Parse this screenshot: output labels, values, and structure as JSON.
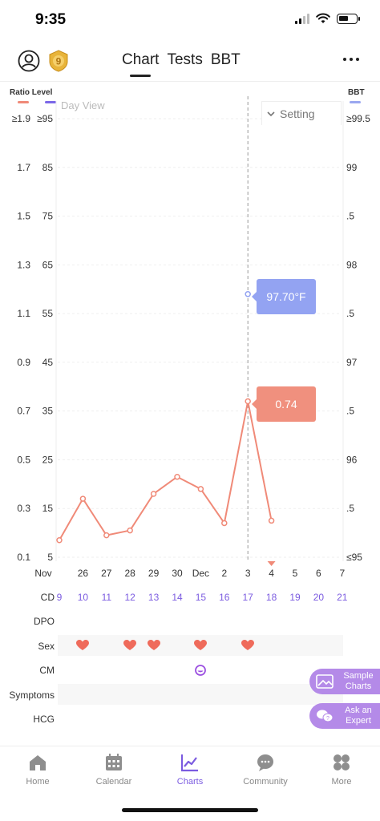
{
  "status": {
    "time": "9:35"
  },
  "header": {
    "tabs": [
      {
        "label": "Chart",
        "active": true
      },
      {
        "label": "Tests",
        "active": false
      },
      {
        "label": "BBT",
        "active": false
      }
    ],
    "badge_label": "9"
  },
  "legend": {
    "ratio": "Ratio",
    "level": "Level",
    "bbt": "BBT"
  },
  "day_view": "Day View",
  "setting_label": "Setting",
  "colors": {
    "ratio": "#f08a78",
    "bbt": "#93a3f2",
    "accent": "#7b5be0"
  },
  "chart_data": {
    "type": "line",
    "left_axis_ratio_ticks": [
      "≥1.9",
      "1.7",
      "1.5",
      "1.3",
      "1.1",
      "0.9",
      "0.7",
      "0.5",
      "0.3",
      "0.1"
    ],
    "left_axis_level_ticks": [
      "≥95",
      "85",
      "75",
      "65",
      "55",
      "45",
      "35",
      "25",
      "15",
      "5"
    ],
    "right_axis_bbt_ticks": [
      "≥99.5",
      "99",
      ".5",
      "98",
      ".5",
      "97",
      ".5",
      "96",
      ".5",
      "≤95"
    ],
    "ratio_ylim": [
      0.1,
      1.9
    ],
    "bbt_ylim": [
      95,
      99.5
    ],
    "x_labels": [
      "Nov",
      "26",
      "27",
      "28",
      "29",
      "30",
      "Dec",
      "2",
      "3",
      "4",
      "5",
      "6",
      "7"
    ],
    "series": [
      {
        "name": "Ratio",
        "x_index": [
          0,
          1,
          2,
          3,
          4,
          5,
          6,
          7,
          8,
          9
        ],
        "values": [
          0.17,
          0.34,
          0.19,
          0.21,
          0.36,
          0.43,
          0.38,
          0.24,
          0.74,
          0.25
        ]
      },
      {
        "name": "BBT",
        "x_index": [
          8
        ],
        "values": [
          97.7
        ]
      }
    ],
    "selected_index": 8,
    "selected_ratio_label": "0.74",
    "selected_bbt_label": "97.70°F"
  },
  "rows": {
    "cd_label": "CD",
    "dpo_label": "DPO",
    "sex_label": "Sex",
    "cm_label": "CM",
    "symptoms_label": "Symptoms",
    "hcg_label": "HCG",
    "cd_values": [
      "9",
      "10",
      "11",
      "12",
      "13",
      "14",
      "15",
      "16",
      "17",
      "18",
      "19",
      "20",
      "21"
    ],
    "sex_days_index": [
      1,
      3,
      4,
      6,
      8
    ],
    "cm_days_index": [
      6
    ]
  },
  "fabs": {
    "sample": "Sample Charts",
    "expert": "Ask an Expert"
  },
  "nav": [
    {
      "label": "Home",
      "icon": "home-icon"
    },
    {
      "label": "Calendar",
      "icon": "calendar-icon"
    },
    {
      "label": "Charts",
      "icon": "charts-icon",
      "active": true
    },
    {
      "label": "Community",
      "icon": "community-icon"
    },
    {
      "label": "More",
      "icon": "more-grid-icon"
    }
  ]
}
